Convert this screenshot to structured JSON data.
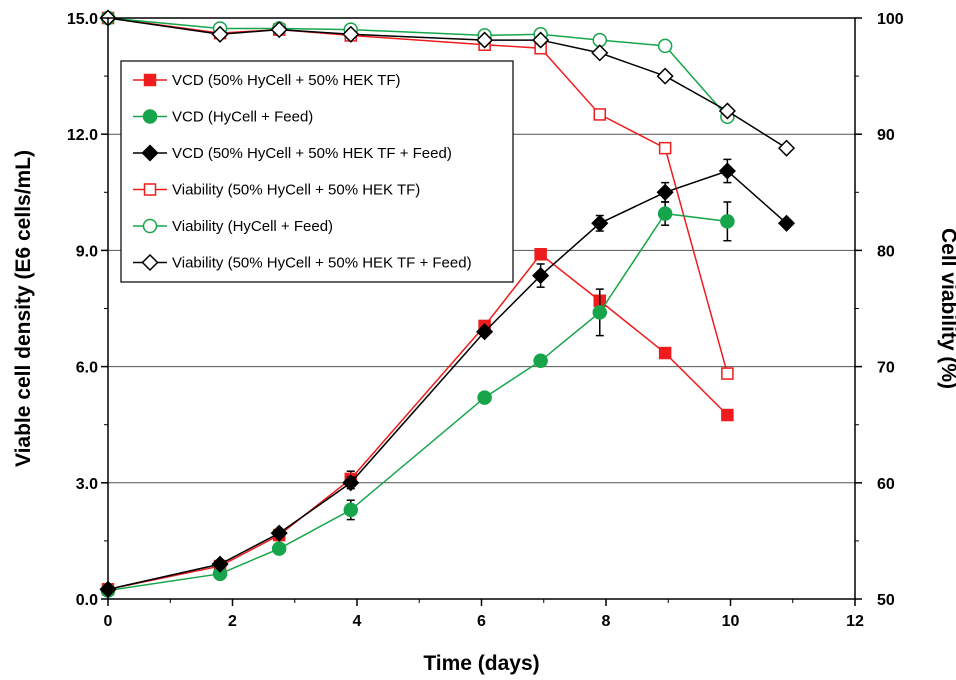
{
  "chart_data": {
    "type": "line",
    "title": "",
    "xlabel": "Time (days)",
    "ylabel": "Viable cell density (E6 cells/mL)",
    "y2label": "Cell viability (%)",
    "xlim": [
      0,
      12
    ],
    "ylim": [
      0,
      15
    ],
    "y2lim": [
      50,
      100
    ],
    "xticks": [
      "0",
      "2",
      "4",
      "6",
      "8",
      "10",
      "12"
    ],
    "yticks": [
      "0.0",
      "3.0",
      "6.0",
      "9.0",
      "12.0",
      "15.0"
    ],
    "y2ticks": [
      "50",
      "60",
      "70",
      "80",
      "90",
      "100"
    ],
    "grid": "horizontal",
    "legend_position": "top-left",
    "colors": {
      "red": "#ee1c1c",
      "green": "#16a54a",
      "black": "#000000"
    },
    "series": [
      {
        "name": "VCD (50% HyCell + 50% HEK TF)",
        "axis": "left",
        "color": "#ee1c1c",
        "marker": "square",
        "filled": true,
        "x": [
          0,
          1.8,
          2.75,
          3.9,
          6.05,
          6.95,
          7.9,
          8.95,
          9.95
        ],
        "y": [
          0.25,
          0.85,
          1.65,
          3.1,
          7.05,
          8.9,
          7.7,
          6.35,
          4.75
        ],
        "err": [
          0,
          0,
          0,
          0.2,
          0,
          0,
          0,
          0,
          0
        ]
      },
      {
        "name": "VCD (HyCell + Feed)",
        "axis": "left",
        "color": "#16a54a",
        "marker": "circle",
        "filled": true,
        "x": [
          0,
          1.8,
          2.75,
          3.9,
          6.05,
          6.95,
          7.9,
          8.95,
          9.95
        ],
        "y": [
          0.22,
          0.65,
          1.3,
          2.3,
          5.2,
          6.15,
          7.4,
          9.95,
          9.75
        ],
        "err": [
          0,
          0,
          0,
          0.25,
          0,
          0,
          0.6,
          0.3,
          0.5
        ]
      },
      {
        "name": "VCD (50% HyCell + 50% HEK TF + Feed)",
        "axis": "left",
        "color": "#000000",
        "marker": "diamond",
        "filled": true,
        "x": [
          0,
          1.8,
          2.75,
          3.9,
          6.05,
          6.95,
          7.9,
          8.95,
          9.95,
          10.9
        ],
        "y": [
          0.25,
          0.9,
          1.7,
          3.0,
          6.9,
          8.35,
          9.7,
          10.5,
          11.05,
          9.7
        ],
        "err": [
          0,
          0,
          0,
          0.15,
          0,
          0.3,
          0.2,
          0.25,
          0.3,
          0
        ]
      },
      {
        "name": "Viability (50% HyCell + 50% HEK TF)",
        "axis": "right",
        "color": "#ee1c1c",
        "marker": "square",
        "filled": false,
        "x": [
          0,
          1.8,
          2.75,
          3.9,
          6.05,
          6.95,
          7.9,
          8.95,
          9.95
        ],
        "y": [
          100,
          98.7,
          99.0,
          98.5,
          97.7,
          97.4,
          91.7,
          88.8,
          69.4
        ]
      },
      {
        "name": "Viability (HyCell + Feed)",
        "axis": "right",
        "color": "#16a54a",
        "marker": "circle",
        "filled": false,
        "x": [
          0,
          1.8,
          2.75,
          3.9,
          6.05,
          6.95,
          7.9,
          8.95,
          9.95
        ],
        "y": [
          100,
          99.1,
          99.1,
          99.0,
          98.5,
          98.6,
          98.1,
          97.6,
          91.5
        ]
      },
      {
        "name": "Viability (50% HyCell + 50% HEK TF + Feed)",
        "axis": "right",
        "color": "#000000",
        "marker": "diamond",
        "filled": false,
        "x": [
          0,
          1.8,
          2.75,
          3.9,
          6.05,
          6.95,
          7.9,
          8.95,
          9.95,
          10.9
        ],
        "y": [
          100,
          98.6,
          99.0,
          98.6,
          98.1,
          98.1,
          97.0,
          95.0,
          92.0,
          88.8
        ]
      }
    ]
  }
}
